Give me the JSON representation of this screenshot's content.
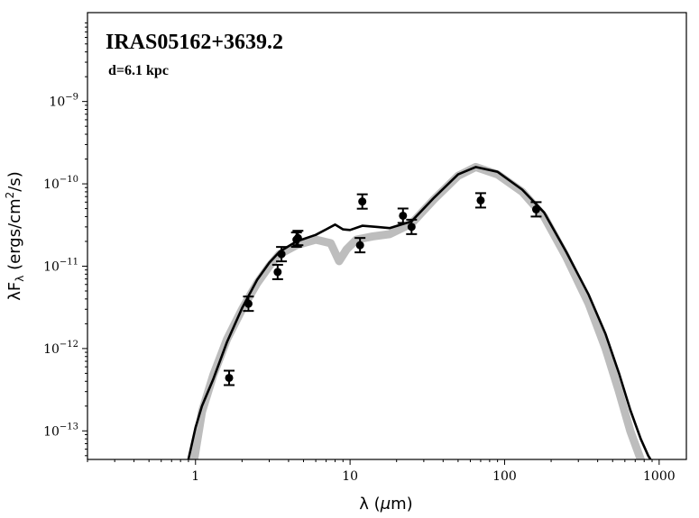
{
  "chart_data": {
    "type": "scatter",
    "title": "IRAS05162+3639.2",
    "annotation": "d=6.1 kpc",
    "xlabel": "λ (μm)",
    "ylabel": "λF_λ (ergs/cm²/s)",
    "x_scale": "log",
    "y_scale": "log",
    "xlim": [
      0.2,
      1500
    ],
    "ylim": [
      4.5e-14,
      1.2e-08
    ],
    "x_ticks": [
      {
        "value": 1,
        "label": "1"
      },
      {
        "value": 10,
        "label": "10"
      },
      {
        "value": 100,
        "label": "100"
      },
      {
        "value": 1000,
        "label": "1000"
      }
    ],
    "y_ticks": [
      {
        "value": 1e-13,
        "base": "10",
        "exp": "−13"
      },
      {
        "value": 1e-12,
        "base": "10",
        "exp": "−12"
      },
      {
        "value": 1e-11,
        "base": "10",
        "exp": "−11"
      },
      {
        "value": 1e-10,
        "base": "10",
        "exp": "−10"
      },
      {
        "value": 1e-09,
        "base": "10",
        "exp": "−9"
      }
    ],
    "colors": {
      "best_fit": "#000000",
      "other_fits": "#bdbdbd",
      "points": "#000000"
    },
    "series": [
      {
        "kind": "model_band",
        "points": [
          [
            0.98,
            4.5e-14
          ],
          [
            1.1,
            1.7e-13
          ],
          [
            1.3,
            4.7e-13
          ],
          [
            1.6,
            1.3e-12
          ],
          [
            2.0,
            3e-12
          ],
          [
            2.5,
            6.2e-12
          ],
          [
            3.0,
            1e-11
          ],
          [
            3.5,
            1.4e-11
          ],
          [
            4.5,
            1.8e-11
          ],
          [
            6,
            2.1e-11
          ],
          [
            7.5,
            1.9e-11
          ],
          [
            8.5,
            1.15e-11
          ],
          [
            9.5,
            1.6e-11
          ],
          [
            11,
            2.1e-11
          ],
          [
            14,
            2.3e-11
          ],
          [
            18,
            2.45e-11
          ],
          [
            25,
            3.3e-11
          ],
          [
            35,
            6.5e-11
          ],
          [
            50,
            1.25e-10
          ],
          [
            65,
            1.6e-10
          ],
          [
            90,
            1.3e-10
          ],
          [
            130,
            8e-11
          ],
          [
            180,
            4e-11
          ],
          [
            250,
            1.3e-11
          ],
          [
            350,
            3.5e-12
          ],
          [
            450,
            1e-12
          ],
          [
            550,
            3e-13
          ],
          [
            650,
            1e-13
          ],
          [
            760,
            4.5e-14
          ]
        ]
      },
      {
        "kind": "best_fit",
        "points": [
          [
            0.9,
            4.5e-14
          ],
          [
            1.0,
            1.1e-13
          ],
          [
            1.1,
            2e-13
          ],
          [
            1.3,
            4.2e-13
          ],
          [
            1.6,
            1.2e-12
          ],
          [
            2.0,
            3.1e-12
          ],
          [
            2.5,
            6.8e-12
          ],
          [
            3.0,
            1.1e-11
          ],
          [
            3.5,
            1.5e-11
          ],
          [
            4.5,
            2e-11
          ],
          [
            6,
            2.4e-11
          ],
          [
            7,
            2.8e-11
          ],
          [
            8,
            3.2e-11
          ],
          [
            9,
            2.8e-11
          ],
          [
            10,
            2.75e-11
          ],
          [
            12,
            3.1e-11
          ],
          [
            15,
            3e-11
          ],
          [
            18,
            2.9e-11
          ],
          [
            25,
            3.5e-11
          ],
          [
            35,
            6.8e-11
          ],
          [
            50,
            1.3e-10
          ],
          [
            65,
            1.6e-10
          ],
          [
            90,
            1.4e-10
          ],
          [
            130,
            8.5e-11
          ],
          [
            180,
            4.5e-11
          ],
          [
            250,
            1.5e-11
          ],
          [
            350,
            4.5e-12
          ],
          [
            450,
            1.5e-12
          ],
          [
            550,
            5e-13
          ],
          [
            650,
            1.8e-13
          ],
          [
            760,
            8e-14
          ],
          [
            850,
            5e-14
          ],
          [
            880,
            4.5e-14
          ]
        ]
      },
      {
        "kind": "observed",
        "points": [
          {
            "x": 1.65,
            "y": 4.4e-13
          },
          {
            "x": 2.2,
            "y": 3.5e-12
          },
          {
            "x": 3.4,
            "y": 8.5e-12
          },
          {
            "x": 3.6,
            "y": 1.4e-11
          },
          {
            "x": 4.5,
            "y": 2.1e-11
          },
          {
            "x": 4.6,
            "y": 2.2e-11
          },
          {
            "x": 11.6,
            "y": 1.8e-11
          },
          {
            "x": 12,
            "y": 6.1e-11
          },
          {
            "x": 22,
            "y": 4.1e-11
          },
          {
            "x": 25,
            "y": 3e-11
          },
          {
            "x": 70,
            "y": 6.3e-11
          },
          {
            "x": 160,
            "y": 4.9e-11
          }
        ]
      }
    ]
  }
}
